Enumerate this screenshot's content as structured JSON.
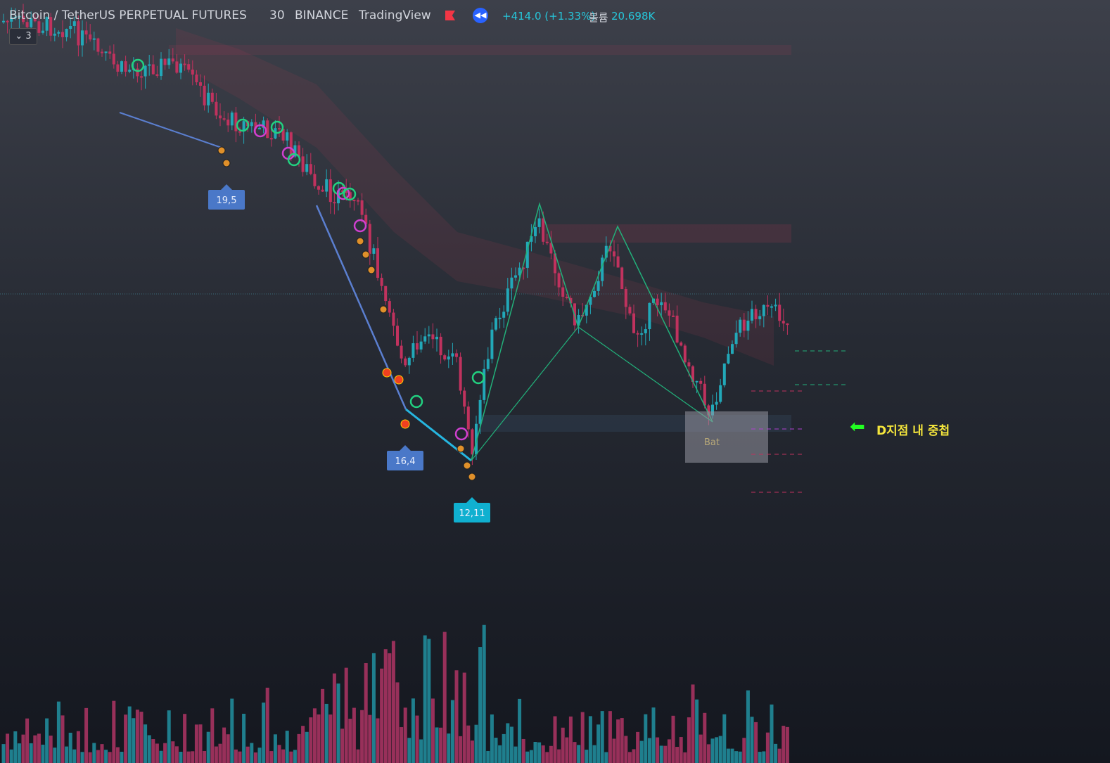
{
  "header": {
    "symbol": "Bitcoin / TetherUS PERPETUAL FUTURES",
    "interval": "30",
    "exchange": "BINANCE",
    "source": "TradingView",
    "change": "+414.0 (+1.33%)",
    "volume_label": "볼륨",
    "volume_value": "20.698K",
    "collapsed_count": "3"
  },
  "annotations": {
    "pivot_labels": [
      "19,5",
      "16,4",
      "12,11"
    ],
    "pattern_name": "Bat",
    "note": "D지점 내 중첩"
  }
}
